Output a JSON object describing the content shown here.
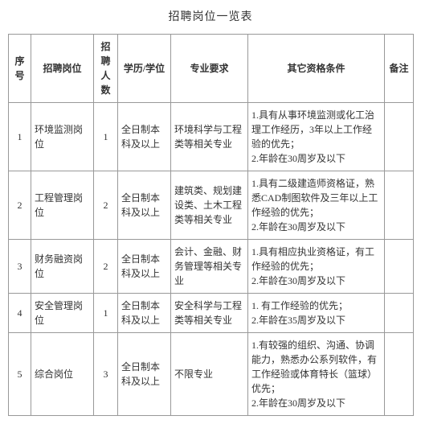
{
  "title": "招聘岗位一览表",
  "headers": {
    "seq": "序号",
    "position": "招聘岗位",
    "count": "招聘人数",
    "edu": "学历/学位",
    "major": "专业要求",
    "qual": "其它资格条件",
    "note": "备注"
  },
  "rows": [
    {
      "seq": "1",
      "position": "环境监测岗位",
      "count": "1",
      "edu": "全日制本科及以上",
      "major": "环境科学与工程类等相关专业",
      "qual": "1.具有从事环境监测或化工治理工作经历，3年以上工作经验的优先；\n2.年龄在30周岁及以下",
      "note": ""
    },
    {
      "seq": "2",
      "position": "工程管理岗位",
      "count": "2",
      "edu": "全日制本科及以上",
      "major": "建筑类、规划建设类、土木工程类等相关专业",
      "qual": "1.具有二级建造师资格证，熟悉CAD制图软件及三年以上工作经验的优先；\n2.年龄在30周岁及以下",
      "note": ""
    },
    {
      "seq": "3",
      "position": "财务融资岗位",
      "count": "2",
      "edu": "全日制本科及以上",
      "major": "会计、金融、财务管理等相关专业",
      "qual": "1.具有相应执业资格证，有工作经验的优先；\n2.年龄在30周岁及以下",
      "note": ""
    },
    {
      "seq": "4",
      "position": "安全管理岗位",
      "count": "1",
      "edu": "全日制本科及以上",
      "major": "安全科学与工程类等相关专业",
      "qual": "1. 有工作经验的优先；\n2.年龄在35周岁及以下",
      "note": ""
    },
    {
      "seq": "5",
      "position": "综合岗位",
      "count": "3",
      "edu": "全日制本科及以上",
      "major": "不限专业",
      "qual": "1.有较强的组织、沟通、协调能力，熟悉办公系列软件，有工作经验或体育特长（篮球）优先；\n2.年龄在30周岁及以下",
      "note": ""
    }
  ]
}
